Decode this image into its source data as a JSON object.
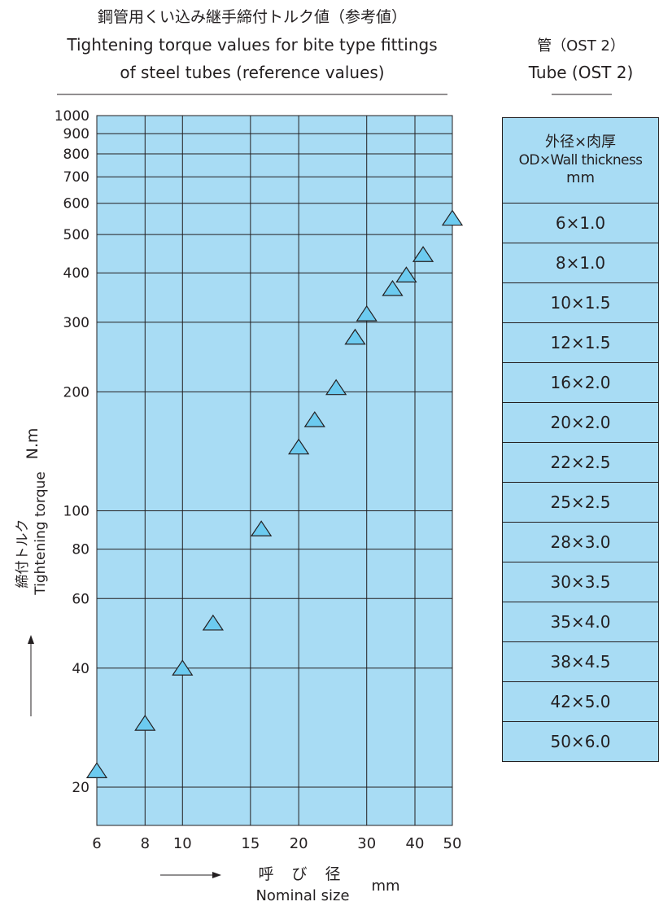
{
  "title_jp": "鋼管用くい込み継手締付トルク値（参考値）",
  "title_en_line1": "Tightening torque values for bite type fittings",
  "title_en_line2": "of steel tubes (reference values)",
  "colors": {
    "plot_bg": "#a8dcf4",
    "marker": "#6ccbf0",
    "line": "#231f20"
  },
  "chart_data": {
    "type": "scatter",
    "marker": "triangle",
    "x_scale": "log",
    "y_scale": "log",
    "xlim": [
      6,
      50
    ],
    "ylim": [
      16,
      1000
    ],
    "x_ticks": [
      "6",
      "8",
      "10",
      "15",
      "20",
      "30",
      "40",
      "50"
    ],
    "x_tick_values": [
      6,
      8,
      10,
      15,
      20,
      30,
      40,
      50
    ],
    "y_ticks": [
      "1000",
      "900",
      "800",
      "700",
      "600",
      "500",
      "400",
      "300",
      "200",
      "100",
      "80",
      "60",
      "40",
      "20"
    ],
    "y_tick_values": [
      1000,
      900,
      800,
      700,
      600,
      500,
      400,
      300,
      200,
      100,
      80,
      60,
      40,
      20
    ],
    "grid": true,
    "xlabel_jp": "呼 び 径",
    "xlabel_en": "Nominal size",
    "xlabel_unit": "mm",
    "ylabel_jp": "締付トルク",
    "ylabel_en": "Tightening torque",
    "ylabel_unit": "N.m",
    "x": [
      6,
      8,
      10,
      12,
      16,
      20,
      22,
      25,
      28,
      30,
      35,
      38,
      42,
      50
    ],
    "y": [
      22,
      29,
      40,
      52,
      90,
      145,
      170,
      205,
      275,
      315,
      365,
      395,
      445,
      550
    ]
  },
  "table": {
    "title_jp": "管（OST 2）",
    "title_en": "Tube (OST 2)",
    "header_line1": "外径×肉厚",
    "header_line2": "OD×Wall thickness",
    "header_line3": "mm",
    "rows": [
      "6×1.0",
      "8×1.0",
      "10×1.5",
      "12×1.5",
      "16×2.0",
      "20×2.0",
      "22×2.5",
      "25×2.5",
      "28×3.0",
      "30×3.5",
      "35×4.0",
      "38×4.5",
      "42×5.0",
      "50×6.0"
    ]
  }
}
